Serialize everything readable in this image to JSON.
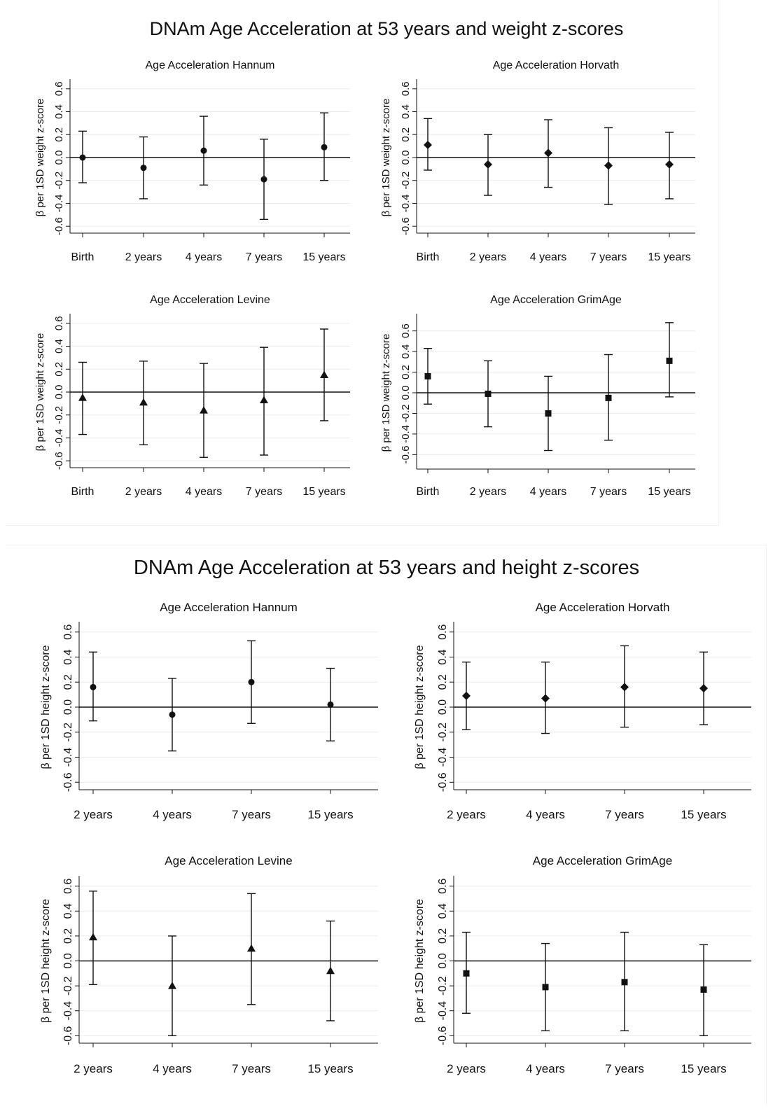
{
  "figure_weight_title": "DNAm Age Acceleration at 53 years and weight z-scores",
  "figure_height_title": "DNAm Age Acceleration at 53 years and height z-scores",
  "chart_data": [
    {
      "type": "scatter",
      "title": "Age Acceleration Hannum",
      "ylabel": "β per 1SD weight z-score",
      "categories": [
        "Birth",
        "2 years",
        "4 years",
        "7 years",
        "15 years"
      ],
      "values": [
        0.0,
        -0.09,
        0.06,
        -0.19,
        0.09
      ],
      "ci_lower": [
        -0.22,
        -0.36,
        -0.24,
        -0.54,
        -0.2
      ],
      "ci_upper": [
        0.23,
        0.18,
        0.36,
        0.16,
        0.39
      ],
      "yticks": [
        "-0.6",
        "-0.4",
        "-0.2",
        "0.0",
        "0.2",
        "0.4",
        "0.6"
      ],
      "ylim": [
        -0.66,
        0.66
      ],
      "marker": "circle",
      "grid": true
    },
    {
      "type": "scatter",
      "title": "Age Acceleration Horvath",
      "ylabel": "β per 1SD weight z-score",
      "categories": [
        "Birth",
        "2 years",
        "4 years",
        "7 years",
        "15 years"
      ],
      "values": [
        0.11,
        -0.06,
        0.04,
        -0.07,
        -0.06
      ],
      "ci_lower": [
        -0.11,
        -0.33,
        -0.26,
        -0.41,
        -0.36
      ],
      "ci_upper": [
        0.34,
        0.2,
        0.33,
        0.26,
        0.22
      ],
      "yticks": [
        "-0.6",
        "-0.4",
        "-0.2",
        "0.0",
        "0.2",
        "0.4",
        "0.6"
      ],
      "ylim": [
        -0.66,
        0.66
      ],
      "marker": "diamond",
      "grid": true
    },
    {
      "type": "scatter",
      "title": "Age Acceleration Levine",
      "ylabel": "β per 1SD weight z-score",
      "categories": [
        "Birth",
        "2 years",
        "4 years",
        "7 years",
        "15 years"
      ],
      "values": [
        -0.05,
        -0.09,
        -0.16,
        -0.07,
        0.15
      ],
      "ci_lower": [
        -0.37,
        -0.46,
        -0.57,
        -0.55,
        -0.25
      ],
      "ci_upper": [
        0.26,
        0.27,
        0.25,
        0.39,
        0.55
      ],
      "yticks": [
        "-0.6",
        "-0.4",
        "-0.2",
        "0.0",
        "0.2",
        "0.4",
        "0.6"
      ],
      "ylim": [
        -0.66,
        0.66
      ],
      "marker": "triangle",
      "grid": true
    },
    {
      "type": "scatter",
      "title": "Age Acceleration GrimAge",
      "ylabel": "β per 1SD weight z-score",
      "categories": [
        "Birth",
        "2 years",
        "4 years",
        "7 years",
        "15 years"
      ],
      "values": [
        0.16,
        -0.01,
        -0.2,
        -0.05,
        0.31
      ],
      "ci_lower": [
        -0.11,
        -0.33,
        -0.56,
        -0.46,
        -0.04
      ],
      "ci_upper": [
        0.43,
        0.31,
        0.16,
        0.37,
        0.68
      ],
      "yticks": [
        "-0.6",
        "-0.4",
        "-0.2",
        "0.0",
        "0.2",
        "0.4",
        "0.6"
      ],
      "ylim": [
        -0.74,
        0.74
      ],
      "marker": "square",
      "grid": true
    },
    {
      "type": "scatter",
      "title": "Age Acceleration Hannum",
      "ylabel": "β per 1SD height z-score",
      "categories": [
        "2 years",
        "4 years",
        "7 years",
        "15 years"
      ],
      "values": [
        0.16,
        -0.06,
        0.2,
        0.02
      ],
      "ci_lower": [
        -0.11,
        -0.35,
        -0.13,
        -0.27
      ],
      "ci_upper": [
        0.44,
        0.23,
        0.53,
        0.31
      ],
      "yticks": [
        "-0.6",
        "-0.4",
        "-0.2",
        "0.0",
        "0.2",
        "0.4",
        "0.6"
      ],
      "ylim": [
        -0.66,
        0.66
      ],
      "marker": "circle",
      "grid": true
    },
    {
      "type": "scatter",
      "title": "Age Acceleration Horvath",
      "ylabel": "β per 1SD height z-score",
      "categories": [
        "2 years",
        "4 years",
        "7 years",
        "15 years"
      ],
      "values": [
        0.09,
        0.07,
        0.16,
        0.15
      ],
      "ci_lower": [
        -0.18,
        -0.21,
        -0.16,
        -0.14
      ],
      "ci_upper": [
        0.36,
        0.36,
        0.49,
        0.44
      ],
      "yticks": [
        "-0.6",
        "-0.4",
        "-0.2",
        "0.0",
        "0.2",
        "0.4",
        "0.6"
      ],
      "ylim": [
        -0.66,
        0.66
      ],
      "marker": "diamond",
      "grid": true
    },
    {
      "type": "scatter",
      "title": "Age Acceleration Levine",
      "ylabel": "β per 1SD height z-score",
      "categories": [
        "2 years",
        "4 years",
        "7 years",
        "15 years"
      ],
      "values": [
        0.19,
        -0.2,
        0.1,
        -0.08
      ],
      "ci_lower": [
        -0.19,
        -0.6,
        -0.35,
        -0.48
      ],
      "ci_upper": [
        0.56,
        0.2,
        0.54,
        0.32
      ],
      "yticks": [
        "-0.6",
        "-0.4",
        "-0.2",
        "0.0",
        "0.2",
        "0.4",
        "0.6"
      ],
      "ylim": [
        -0.66,
        0.66
      ],
      "marker": "triangle",
      "grid": true
    },
    {
      "type": "scatter",
      "title": "Age Acceleration GrimAge",
      "ylabel": "β per 1SD height z-score",
      "categories": [
        "2 years",
        "4 years",
        "7 years",
        "15 years"
      ],
      "values": [
        -0.1,
        -0.21,
        -0.17,
        -0.23
      ],
      "ci_lower": [
        -0.42,
        -0.56,
        -0.56,
        -0.6
      ],
      "ci_upper": [
        0.23,
        0.14,
        0.23,
        0.13
      ],
      "yticks": [
        "-0.6",
        "-0.4",
        "-0.2",
        "0.0",
        "0.2",
        "0.4",
        "0.6"
      ],
      "ylim": [
        -0.66,
        0.66
      ],
      "marker": "square",
      "grid": true
    }
  ]
}
